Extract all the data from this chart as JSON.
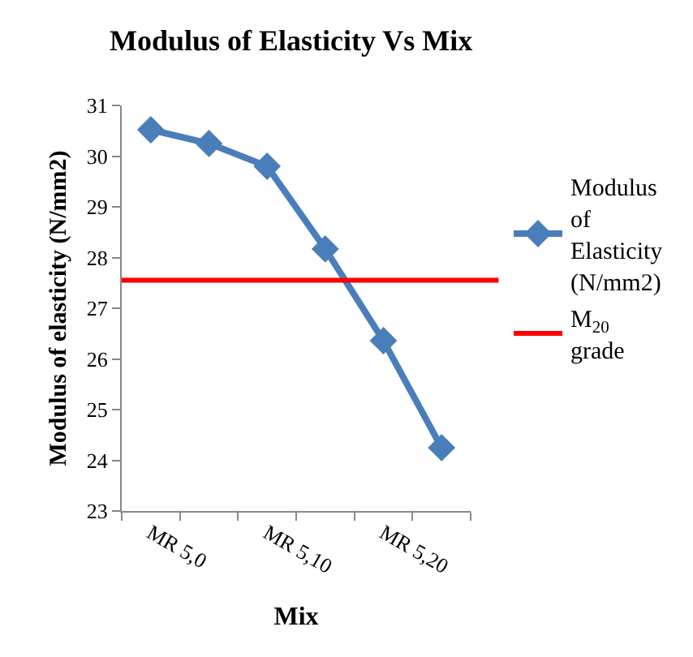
{
  "chart_data": {
    "type": "line",
    "title": "Modulus of Elasticity Vs Mix",
    "xlabel": "Mix",
    "ylabel": "Modulus of elasticity (N/mm2)",
    "categories": [
      "MR 5,0",
      null,
      "MR 5,10",
      null,
      "MR 5,20",
      null
    ],
    "series": [
      {
        "name": "Modulus of Elasticity (N/mm2)",
        "color": "#4a7ebb",
        "values": [
          30.52,
          30.25,
          29.8,
          28.17,
          26.36,
          24.25
        ]
      }
    ],
    "ref_lines": [
      {
        "axis": "y",
        "value": 27.55,
        "label": "M$_{20}$ grade",
        "color": "#ff0000",
        "line_style": "solid"
      }
    ],
    "ylim": [
      23,
      31
    ],
    "yticks": [
      23,
      24,
      25,
      26,
      27,
      28,
      29,
      30,
      31
    ],
    "marker": "diamond",
    "line_style": "solid",
    "legend": "right"
  }
}
